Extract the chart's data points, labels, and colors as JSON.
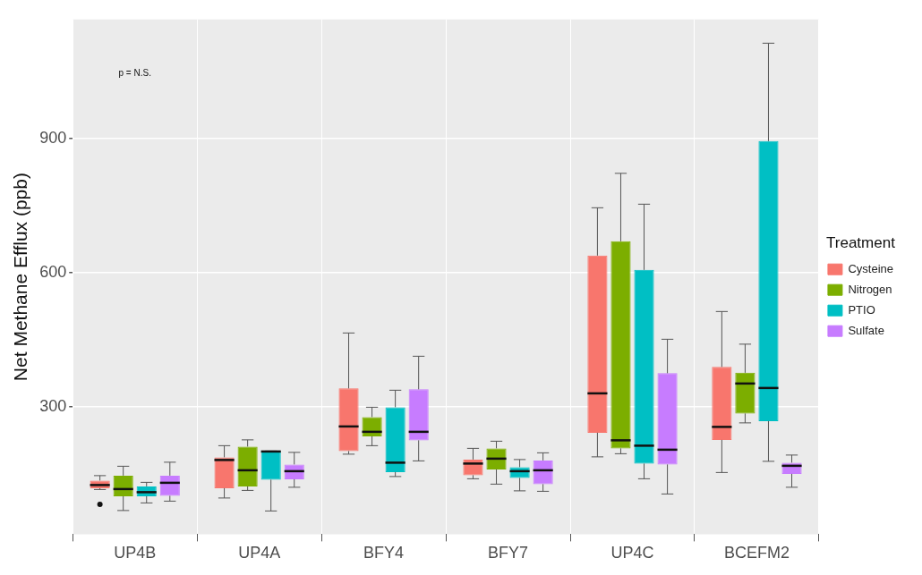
{
  "chart_data": {
    "type": "box",
    "ylabel": "Net Methane Efflux (ppb)",
    "legend_title": "Treatment",
    "legend": "right",
    "grid": true,
    "categories": [
      "UP4B",
      "UP4A",
      "BFY4",
      "BFY7",
      "UP4C",
      "BCEFM2"
    ],
    "ylim": [
      15,
      1166
    ],
    "yticks": [
      300,
      600,
      900
    ],
    "annotations": [
      "p = N.S."
    ],
    "series": [
      {
        "name": "Cysteine",
        "color": "#f8766d",
        "boxes": [
          {
            "low": 115,
            "q1": 118,
            "median": 125,
            "q3": 135,
            "high": 146,
            "outliers": [
              82
            ]
          },
          {
            "low": 96,
            "q1": 118,
            "median": 181,
            "q3": 187,
            "high": 213
          },
          {
            "low": 194,
            "q1": 201,
            "median": 256,
            "q3": 341,
            "high": 465
          },
          {
            "low": 139,
            "q1": 147,
            "median": 173,
            "q3": 182,
            "high": 207
          },
          {
            "low": 188,
            "q1": 242,
            "median": 330,
            "q3": 638,
            "high": 745
          },
          {
            "low": 153,
            "q1": 226,
            "median": 255,
            "q3": 389,
            "high": 513
          }
        ]
      },
      {
        "name": "Nitrogen",
        "color": "#7cae00",
        "boxes": [
          {
            "low": 68,
            "q1": 100,
            "median": 116,
            "q3": 146,
            "high": 167
          },
          {
            "low": 113,
            "q1": 122,
            "median": 158,
            "q3": 211,
            "high": 226
          },
          {
            "low": 213,
            "q1": 234,
            "median": 244,
            "q3": 277,
            "high": 299
          },
          {
            "low": 127,
            "q1": 160,
            "median": 184,
            "q3": 207,
            "high": 223
          },
          {
            "low": 195,
            "q1": 207,
            "median": 225,
            "q3": 670,
            "high": 822
          },
          {
            "low": 264,
            "q1": 285,
            "median": 352,
            "q3": 376,
            "high": 440
          }
        ]
      },
      {
        "name": "PTIO",
        "color": "#00bfc4",
        "boxes": [
          {
            "low": 85,
            "q1": 100,
            "median": 109,
            "q3": 122,
            "high": 131
          },
          {
            "low": 67,
            "q1": 137,
            "median": 200,
            "q3": 201,
            "high": 201
          },
          {
            "low": 144,
            "q1": 154,
            "median": 175,
            "q3": 299,
            "high": 337
          },
          {
            "low": 112,
            "q1": 141,
            "median": 156,
            "q3": 165,
            "high": 182
          },
          {
            "low": 139,
            "q1": 173,
            "median": 213,
            "q3": 606,
            "high": 753
          },
          {
            "low": 178,
            "q1": 268,
            "median": 342,
            "q3": 894,
            "high": 1113
          }
        ]
      },
      {
        "name": "Sulfate",
        "color": "#c77cff",
        "boxes": [
          {
            "low": 89,
            "q1": 101,
            "median": 130,
            "q3": 146,
            "high": 176
          },
          {
            "low": 120,
            "q1": 138,
            "median": 156,
            "q3": 171,
            "high": 198
          },
          {
            "low": 179,
            "q1": 225,
            "median": 244,
            "q3": 339,
            "high": 413
          },
          {
            "low": 111,
            "q1": 127,
            "median": 158,
            "q3": 180,
            "high": 197
          },
          {
            "low": 105,
            "q1": 171,
            "median": 204,
            "q3": 375,
            "high": 451
          },
          {
            "low": 120,
            "q1": 150,
            "median": 168,
            "q3": 175,
            "high": 192
          }
        ]
      }
    ]
  }
}
